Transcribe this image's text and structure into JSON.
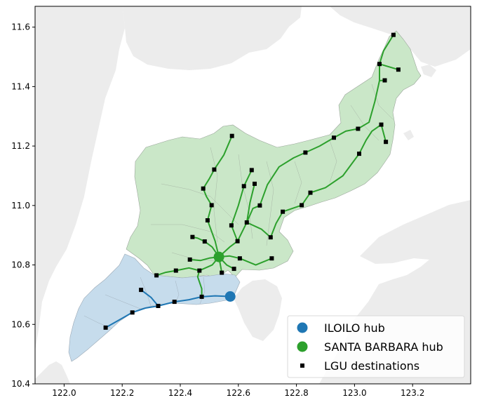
{
  "chart_data": {
    "type": "map",
    "xlim": [
      121.9,
      123.4
    ],
    "ylim": [
      10.4,
      11.67
    ],
    "x_ticks": [
      {
        "value": 122.0,
        "label": "122.0"
      },
      {
        "value": 122.2,
        "label": "122.2"
      },
      {
        "value": 122.4,
        "label": "122.4"
      },
      {
        "value": 122.6,
        "label": "122.6"
      },
      {
        "value": 122.8,
        "label": "122.8"
      },
      {
        "value": 123.0,
        "label": "123.0"
      },
      {
        "value": 123.2,
        "label": "123.2"
      }
    ],
    "y_ticks": [
      {
        "value": 10.4,
        "label": "10.4"
      },
      {
        "value": 10.6,
        "label": "10.6"
      },
      {
        "value": 10.8,
        "label": "10.8"
      },
      {
        "value": 11.0,
        "label": "11.0"
      },
      {
        "value": 11.2,
        "label": "11.2"
      },
      {
        "value": 11.4,
        "label": "11.4"
      },
      {
        "value": 11.6,
        "label": "11.6"
      }
    ],
    "colors": {
      "background_land": "#ececec",
      "iloilo": "#1f77b4",
      "iloilo_fill": "#c6dcec",
      "santa_barbara": "#2ca02c",
      "santa_barbara_fill": "#cae7c8",
      "destination": "#000000"
    },
    "legend": {
      "position": "lower-right",
      "entries": [
        {
          "label": "ILOILO hub",
          "marker": "circle",
          "color": "#1f77b4"
        },
        {
          "label": "SANTA BARBARA hub",
          "marker": "circle",
          "color": "#2ca02c"
        },
        {
          "label": "LGU destinations",
          "marker": "square",
          "color": "#000000"
        }
      ]
    },
    "hubs": [
      {
        "name": "ILOILO hub",
        "lon": 122.572,
        "lat": 10.694,
        "color": "#1f77b4"
      },
      {
        "name": "SANTA BARBARA hub",
        "lon": 122.533,
        "lat": 10.827,
        "color": "#2ca02c"
      }
    ],
    "destinations": [
      [
        122.143,
        10.589
      ],
      [
        122.235,
        10.64
      ],
      [
        122.265,
        10.716
      ],
      [
        122.324,
        10.662
      ],
      [
        122.38,
        10.676
      ],
      [
        122.474,
        10.693
      ],
      [
        122.318,
        10.765
      ],
      [
        122.385,
        10.781
      ],
      [
        122.433,
        10.818
      ],
      [
        122.466,
        10.781
      ],
      [
        122.484,
        10.879
      ],
      [
        122.442,
        10.894
      ],
      [
        122.494,
        10.95
      ],
      [
        122.508,
        11.001
      ],
      [
        122.479,
        11.057
      ],
      [
        122.517,
        11.121
      ],
      [
        122.578,
        11.234
      ],
      [
        122.543,
        10.774
      ],
      [
        122.585,
        10.787
      ],
      [
        122.605,
        10.822
      ],
      [
        122.597,
        10.88
      ],
      [
        122.576,
        10.933
      ],
      [
        122.629,
        10.943
      ],
      [
        122.619,
        11.065
      ],
      [
        122.646,
        11.119
      ],
      [
        122.656,
        11.073
      ],
      [
        122.674,
        11.0
      ],
      [
        122.711,
        10.893
      ],
      [
        122.715,
        10.822
      ],
      [
        122.753,
        10.979
      ],
      [
        122.818,
        11.001
      ],
      [
        122.848,
        11.043
      ],
      [
        122.831,
        11.178
      ],
      [
        122.929,
        11.228
      ],
      [
        123.012,
        11.258
      ],
      [
        123.016,
        11.174
      ],
      [
        123.092,
        11.272
      ],
      [
        123.108,
        11.214
      ],
      [
        123.104,
        11.421
      ],
      [
        123.086,
        11.476
      ],
      [
        123.151,
        11.457
      ],
      [
        123.134,
        11.574
      ]
    ],
    "iloilo_routes": [
      [
        [
          122.572,
          10.694
        ],
        [
          122.52,
          10.696
        ],
        [
          122.474,
          10.693
        ],
        [
          122.43,
          10.683
        ],
        [
          122.38,
          10.676
        ],
        [
          122.324,
          10.662
        ],
        [
          122.28,
          10.655
        ],
        [
          122.235,
          10.64
        ],
        [
          122.19,
          10.615
        ],
        [
          122.143,
          10.589
        ]
      ],
      [
        [
          122.324,
          10.662
        ],
        [
          122.3,
          10.69
        ],
        [
          122.265,
          10.716
        ]
      ]
    ],
    "santa_barbara_routes": [
      [
        [
          122.533,
          10.827
        ],
        [
          122.51,
          10.8
        ],
        [
          122.466,
          10.781
        ],
        [
          122.43,
          10.79
        ],
        [
          122.385,
          10.781
        ],
        [
          122.35,
          10.775
        ],
        [
          122.318,
          10.765
        ]
      ],
      [
        [
          122.466,
          10.781
        ],
        [
          122.46,
          10.76
        ],
        [
          122.474,
          10.72
        ],
        [
          122.474,
          10.693
        ]
      ],
      [
        [
          122.533,
          10.827
        ],
        [
          122.5,
          10.823
        ],
        [
          122.47,
          10.815
        ],
        [
          122.433,
          10.818
        ]
      ],
      [
        [
          122.533,
          10.827
        ],
        [
          122.51,
          10.86
        ],
        [
          122.484,
          10.879
        ],
        [
          122.46,
          10.89
        ],
        [
          122.442,
          10.894
        ]
      ],
      [
        [
          122.533,
          10.827
        ],
        [
          122.52,
          10.88
        ],
        [
          122.494,
          10.95
        ],
        [
          122.508,
          11.001
        ],
        [
          122.49,
          11.03
        ],
        [
          122.479,
          11.057
        ],
        [
          122.5,
          11.09
        ],
        [
          122.517,
          11.121
        ],
        [
          122.55,
          11.17
        ],
        [
          122.578,
          11.234
        ]
      ],
      [
        [
          122.533,
          10.827
        ],
        [
          122.543,
          10.774
        ]
      ],
      [
        [
          122.533,
          10.827
        ],
        [
          122.56,
          10.8
        ],
        [
          122.585,
          10.787
        ]
      ],
      [
        [
          122.533,
          10.827
        ],
        [
          122.57,
          10.83
        ],
        [
          122.605,
          10.822
        ],
        [
          122.66,
          10.8
        ],
        [
          122.715,
          10.822
        ]
      ],
      [
        [
          122.533,
          10.827
        ],
        [
          122.57,
          10.86
        ],
        [
          122.597,
          10.88
        ],
        [
          122.629,
          10.943
        ],
        [
          122.65,
          10.99
        ],
        [
          122.674,
          11.0
        ]
      ],
      [
        [
          122.597,
          10.88
        ],
        [
          122.576,
          10.933
        ],
        [
          122.6,
          11.0
        ],
        [
          122.619,
          11.065
        ],
        [
          122.646,
          11.119
        ]
      ],
      [
        [
          122.629,
          10.943
        ],
        [
          122.64,
          11.01
        ],
        [
          122.656,
          11.073
        ]
      ],
      [
        [
          122.629,
          10.943
        ],
        [
          122.68,
          10.92
        ],
        [
          122.711,
          10.893
        ],
        [
          122.73,
          10.94
        ],
        [
          122.753,
          10.979
        ],
        [
          122.818,
          11.001
        ],
        [
          122.848,
          11.043
        ],
        [
          122.9,
          11.06
        ],
        [
          122.96,
          11.1
        ],
        [
          123.016,
          11.174
        ],
        [
          123.04,
          11.22
        ],
        [
          123.06,
          11.25
        ],
        [
          123.092,
          11.272
        ]
      ],
      [
        [
          122.674,
          11.0
        ],
        [
          122.7,
          11.07
        ],
        [
          122.74,
          11.13
        ],
        [
          122.79,
          11.16
        ],
        [
          122.831,
          11.178
        ],
        [
          122.88,
          11.2
        ],
        [
          122.929,
          11.228
        ],
        [
          122.97,
          11.25
        ],
        [
          123.012,
          11.258
        ],
        [
          123.05,
          11.28
        ],
        [
          123.07,
          11.35
        ],
        [
          123.086,
          11.42
        ],
        [
          123.104,
          11.421
        ]
      ],
      [
        [
          123.092,
          11.272
        ],
        [
          123.108,
          11.214
        ]
      ],
      [
        [
          123.086,
          11.42
        ],
        [
          123.086,
          11.476
        ],
        [
          123.151,
          11.457
        ]
      ],
      [
        [
          123.086,
          11.476
        ],
        [
          123.1,
          11.52
        ],
        [
          123.134,
          11.574
        ]
      ]
    ]
  }
}
